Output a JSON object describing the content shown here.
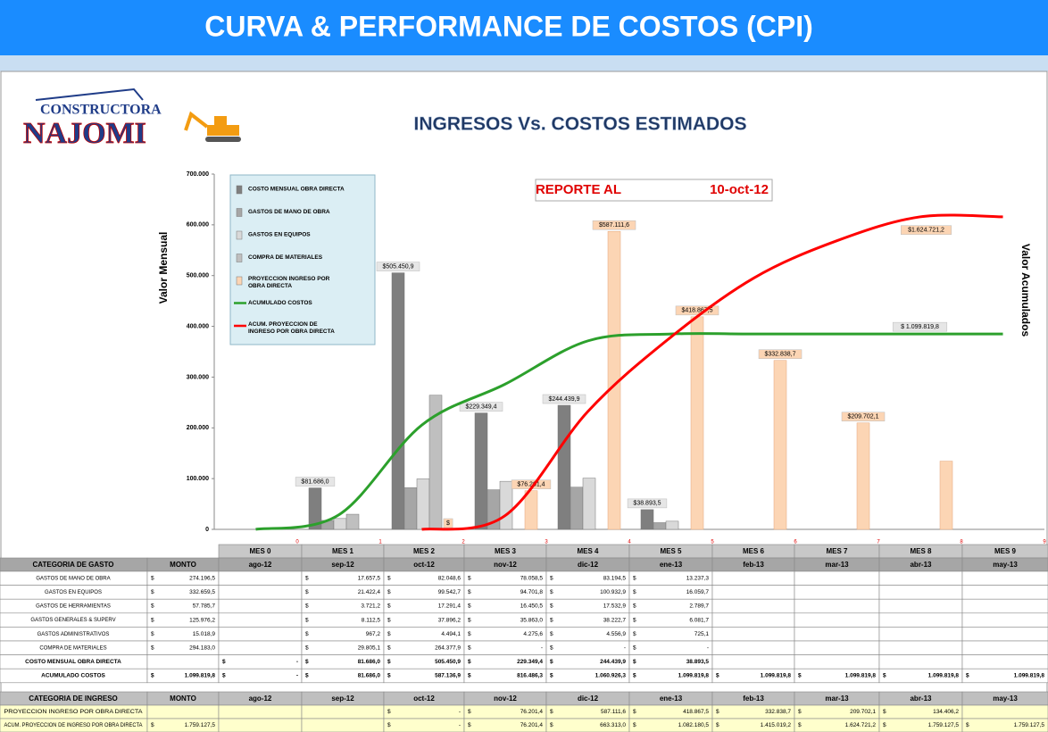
{
  "header": {
    "title": "CURVA & PERFORMANCE DE COSTOS (CPI)"
  },
  "logo": {
    "line1": "CONSTRUCTORA",
    "line2": "NAJOMI"
  },
  "chart_data": {
    "type": "bar",
    "title": "INGRESOS Vs. COSTOS ESTIMADOS",
    "annotation": {
      "label": "REPORTE AL",
      "date": "10-oct-12"
    },
    "y_label": "Valor Mensual",
    "y2_label": "Valor Acumulados",
    "categories": [
      "0",
      "1",
      "2",
      "3",
      "4",
      "5",
      "6",
      "7",
      "8",
      "9"
    ],
    "ylim": [
      0,
      700000
    ],
    "yticks": [
      0,
      {
        "value": 100000,
        "label": "100.000"
      },
      {
        "value": 200000,
        "label": "200.000"
      },
      {
        "value": 300000,
        "label": "300.000"
      },
      {
        "value": 400000,
        "label": "400.000"
      },
      {
        "value": 500000,
        "label": "500.000"
      },
      {
        "value": 600000,
        "label": "600.000"
      },
      {
        "value": 700000,
        "label": "700.000"
      }
    ],
    "y2lim": [
      0,
      2000000
    ],
    "series": [
      {
        "name": "COSTO MENSUAL OBRA DIRECTA",
        "kind": "bar",
        "color": "#7f7f7f",
        "values": [
          null,
          81686.0,
          505450.9,
          229349.4,
          244439.9,
          38893.5,
          null,
          null,
          null,
          null
        ],
        "value_labels": [
          null,
          "$81.686,0",
          "$505.450,9",
          "$229.349,4",
          "$244.439,9",
          "$38.893,5",
          null,
          null,
          null,
          null
        ]
      },
      {
        "name": "GASTOS DE MANO DE OBRA",
        "kind": "bar",
        "color": "#a6a6a6",
        "values": [
          null,
          17657.5,
          82048.6,
          78058.5,
          83194.5,
          13237.3,
          null,
          null,
          null,
          null
        ]
      },
      {
        "name": "GASTOS EN EQUIPOS",
        "kind": "bar",
        "color": "#d9d9d9",
        "values": [
          null,
          21422.4,
          99542.7,
          94701.8,
          100932.9,
          16059.7,
          null,
          null,
          null,
          null
        ]
      },
      {
        "name": "COMPRA DE MATERIALES",
        "kind": "bar",
        "color": "#bfbfbf",
        "values": [
          null,
          29805.1,
          264377.9,
          null,
          null,
          null,
          null,
          null,
          null,
          null
        ]
      },
      {
        "name": "PROYECCION INGRESO POR OBRA DIRECTA",
        "kind": "bar",
        "color": "#fcd5b4",
        "values": [
          null,
          null,
          0,
          76201.4,
          587111.6,
          418867.5,
          332838.7,
          209702.1,
          134406.2,
          null
        ],
        "value_labels": [
          null,
          null,
          "$",
          "$76.201,4",
          "$587.111,6",
          "$418.867,5",
          "$332.838,7",
          "$209.702,1",
          null,
          null
        ]
      },
      {
        "name": "ACUMULADO COSTOS",
        "kind": "line",
        "axis": "y2",
        "color": "#2ca02c",
        "values": [
          0,
          81686.0,
          587136.9,
          816486.3,
          1060926.3,
          1099819.8,
          1099819.8,
          1099819.8,
          1099819.8,
          1099819.8
        ],
        "value_labels": [
          null,
          null,
          null,
          null,
          null,
          null,
          null,
          null,
          "$ 1.099.819,8",
          null
        ]
      },
      {
        "name": "ACUM. PROYECCION DE INGRESO POR OBRA DIRECTA",
        "kind": "line",
        "axis": "y2",
        "color": "#ff0000",
        "values": [
          null,
          null,
          0,
          76201.4,
          663313.0,
          1082180.5,
          1415019.2,
          1624721.2,
          1759127.5,
          1759127.5
        ],
        "value_labels": [
          null,
          null,
          null,
          null,
          null,
          null,
          null,
          "$1.624.721,2",
          null,
          null
        ]
      }
    ]
  },
  "table": {
    "currency": "$",
    "mes_headers": [
      "MES 0",
      "MES 1",
      "MES 2",
      "MES 3",
      "MES 4",
      "MES 5",
      "MES 6",
      "MES 7",
      "MES 8",
      "MES 9"
    ],
    "expense": {
      "header": "CATEGORIA DE GASTO",
      "monto_header": "MONTO",
      "months": [
        "ago-12",
        "sep-12",
        "oct-12",
        "nov-12",
        "dic-12",
        "ene-13",
        "feb-13",
        "mar-13",
        "abr-13",
        "may-13"
      ],
      "rows": [
        {
          "label": "GASTOS DE MANO DE OBRA",
          "monto": "274.196,5",
          "cells": [
            null,
            "17.657,5",
            "82.048,6",
            "78.058,5",
            "83.194,5",
            "13.237,3",
            null,
            null,
            null,
            null
          ]
        },
        {
          "label": "GASTOS EN EQUIPOS",
          "monto": "332.659,5",
          "cells": [
            null,
            "21.422,4",
            "99.542,7",
            "94.701,8",
            "100.932,9",
            "16.059,7",
            null,
            null,
            null,
            null
          ]
        },
        {
          "label": "GASTOS DE HERRAMIENTAS",
          "monto": "57.785,7",
          "cells": [
            null,
            "3.721,2",
            "17.291,4",
            "16.450,5",
            "17.532,9",
            "2.789,7",
            null,
            null,
            null,
            null
          ]
        },
        {
          "label": "GASTOS GENERALES & SUPERV",
          "monto": "125.976,2",
          "cells": [
            null,
            "8.112,5",
            "37.896,2",
            "35.863,0",
            "38.222,7",
            "6.081,7",
            null,
            null,
            null,
            null
          ]
        },
        {
          "label": "GASTOS ADMINISTRATIVOS",
          "monto": "15.018,9",
          "cells": [
            null,
            "967,2",
            "4.494,1",
            "4.275,6",
            "4.556,9",
            "725,1",
            null,
            null,
            null,
            null
          ]
        },
        {
          "label": "COMPRA DE MATERIALES",
          "monto": "294.183,0",
          "cells": [
            null,
            "29.805,1",
            "264.377,9",
            "-",
            "-",
            "-",
            null,
            null,
            null,
            null
          ]
        },
        {
          "label": "COSTO MENSUAL OBRA DIRECTA",
          "monto": null,
          "cells": [
            "-",
            "81.686,0",
            "505.450,9",
            "229.349,4",
            "244.439,9",
            "38.893,5",
            null,
            null,
            null,
            null
          ]
        },
        {
          "label": "ACUMULADO COSTOS",
          "monto": "1.099.819,8",
          "cells": [
            "-",
            "81.686,0",
            "587.136,9",
            "816.486,3",
            "1.060.926,3",
            "1.099.819,8",
            "1.099.819,8",
            "1.099.819,8",
            "1.099.819,8",
            "1.099.819,8"
          ]
        }
      ]
    },
    "income": {
      "header": "CATEGORIA DE INGRESO",
      "monto_header": "MONTO",
      "months": [
        "ago-12",
        "sep-12",
        "oct-12",
        "nov-12",
        "dic-12",
        "ene-13",
        "feb-13",
        "mar-13",
        "abr-13",
        "may-13"
      ],
      "rows": [
        {
          "label": "PROYECCION INGRESO POR OBRA DIRECTA",
          "monto": null,
          "cells": [
            null,
            null,
            "-",
            "76.201,4",
            "587.111,6",
            "418.867,5",
            "332.838,7",
            "209.702,1",
            "134.406,2",
            null
          ]
        },
        {
          "label": "ACUM. PROYECCION DE INGRESO POR OBRA DIRECTA",
          "monto": "1.759.127,5",
          "cells": [
            null,
            null,
            "-",
            "76.201,4",
            "663.313,0",
            "1.082.180,5",
            "1.415.019,2",
            "1.624.721,2",
            "1.759.127,5",
            "1.759.127,5"
          ]
        }
      ]
    }
  }
}
